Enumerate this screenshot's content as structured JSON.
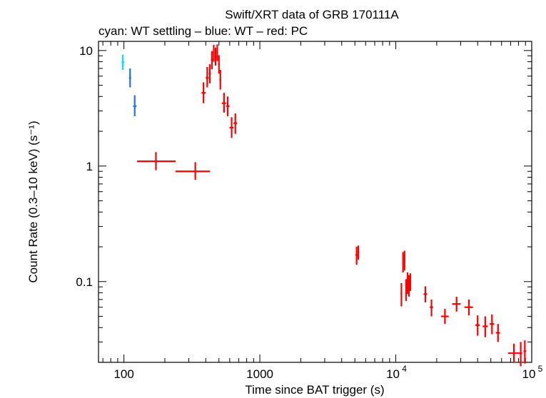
{
  "chart_data": {
    "type": "scatter",
    "title": "Swift/XRT data of GRB 170111A",
    "subtitle": "cyan: WT settling – blue: WT – red: PC",
    "xlabel": "Time since BAT trigger (s)",
    "ylabel": "Count Rate (0.3–10 keV) (s⁻¹)",
    "xscale": "log",
    "yscale": "log",
    "xlim": [
      65,
      100000
    ],
    "ylim": [
      0.02,
      12
    ],
    "x_ticks": [
      {
        "value": 100,
        "label": "100"
      },
      {
        "value": 1000,
        "label": "1000"
      },
      {
        "value": 10000,
        "base": "10",
        "exp": "4"
      },
      {
        "value": 100000,
        "base": "10",
        "exp": "5"
      }
    ],
    "y_ticks": [
      {
        "value": 0.1,
        "label": "0.1"
      },
      {
        "value": 1,
        "label": "1"
      },
      {
        "value": 10,
        "label": "10"
      }
    ],
    "series": [
      {
        "name": "WT settling",
        "color": "#00e5ff",
        "points": [
          {
            "x": 98,
            "y": 7.9,
            "xlo": 96,
            "xhi": 101,
            "ylo": 6.8,
            "yhi": 9.2
          }
        ]
      },
      {
        "name": "WT",
        "color": "#1e74e8",
        "points": [
          {
            "x": 111,
            "y": 5.8,
            "xlo": 109,
            "xhi": 113,
            "ylo": 4.8,
            "yhi": 7.0
          },
          {
            "x": 120,
            "y": 3.3,
            "xlo": 117,
            "xhi": 124,
            "ylo": 2.7,
            "yhi": 4.1
          }
        ]
      },
      {
        "name": "PC",
        "color": "#ff0000",
        "points": [
          {
            "x": 172,
            "y": 1.1,
            "xlo": 125,
            "xhi": 240,
            "ylo": 0.92,
            "yhi": 1.32
          },
          {
            "x": 335,
            "y": 0.9,
            "xlo": 240,
            "xhi": 430,
            "ylo": 0.76,
            "yhi": 1.08
          },
          {
            "x": 385,
            "y": 4.3,
            "xlo": 372,
            "xhi": 400,
            "ylo": 3.5,
            "yhi": 5.3
          },
          {
            "x": 410,
            "y": 5.8,
            "xlo": 400,
            "xhi": 420,
            "ylo": 4.8,
            "yhi": 7.2
          },
          {
            "x": 428,
            "y": 6.3,
            "xlo": 420,
            "xhi": 436,
            "ylo": 5.2,
            "yhi": 7.6
          },
          {
            "x": 444,
            "y": 8.3,
            "xlo": 436,
            "xhi": 452,
            "ylo": 6.9,
            "yhi": 9.9
          },
          {
            "x": 458,
            "y": 9.5,
            "xlo": 452,
            "xhi": 465,
            "ylo": 8.0,
            "yhi": 11.2
          },
          {
            "x": 472,
            "y": 8.9,
            "xlo": 465,
            "xhi": 480,
            "ylo": 7.4,
            "yhi": 10.6
          },
          {
            "x": 486,
            "y": 9.6,
            "xlo": 480,
            "xhi": 493,
            "ylo": 8.1,
            "yhi": 11.3
          },
          {
            "x": 500,
            "y": 7.6,
            "xlo": 493,
            "xhi": 508,
            "ylo": 6.3,
            "yhi": 9.1
          },
          {
            "x": 512,
            "y": 5.6,
            "xlo": 505,
            "xhi": 520,
            "ylo": 4.6,
            "yhi": 6.8
          },
          {
            "x": 545,
            "y": 3.5,
            "xlo": 525,
            "xhi": 565,
            "ylo": 2.9,
            "yhi": 4.3
          },
          {
            "x": 580,
            "y": 3.3,
            "xlo": 565,
            "xhi": 598,
            "ylo": 2.7,
            "yhi": 4.0
          },
          {
            "x": 620,
            "y": 2.15,
            "xlo": 598,
            "xhi": 640,
            "ylo": 1.75,
            "yhi": 2.65
          },
          {
            "x": 660,
            "y": 2.35,
            "xlo": 640,
            "xhi": 680,
            "ylo": 1.9,
            "yhi": 2.85
          },
          {
            "x": 5150,
            "y": 0.17,
            "xlo": 5050,
            "xhi": 5250,
            "ylo": 0.14,
            "yhi": 0.2
          },
          {
            "x": 5300,
            "y": 0.18,
            "xlo": 5220,
            "xhi": 5380,
            "ylo": 0.155,
            "yhi": 0.205
          },
          {
            "x": 11000,
            "y": 0.078,
            "xlo": 10850,
            "xhi": 11150,
            "ylo": 0.061,
            "yhi": 0.097
          },
          {
            "x": 11300,
            "y": 0.15,
            "xlo": 11180,
            "xhi": 11420,
            "ylo": 0.12,
            "yhi": 0.18
          },
          {
            "x": 11600,
            "y": 0.155,
            "xlo": 11480,
            "xhi": 11720,
            "ylo": 0.125,
            "yhi": 0.185
          },
          {
            "x": 11900,
            "y": 0.085,
            "xlo": 11780,
            "xhi": 12020,
            "ylo": 0.068,
            "yhi": 0.105
          },
          {
            "x": 12200,
            "y": 0.098,
            "xlo": 12080,
            "xhi": 12320,
            "ylo": 0.078,
            "yhi": 0.12
          },
          {
            "x": 12500,
            "y": 0.093,
            "xlo": 12380,
            "xhi": 12620,
            "ylo": 0.074,
            "yhi": 0.114
          },
          {
            "x": 12800,
            "y": 0.1,
            "xlo": 12680,
            "xhi": 12920,
            "ylo": 0.083,
            "yhi": 0.118
          },
          {
            "x": 16500,
            "y": 0.078,
            "xlo": 16000,
            "xhi": 17000,
            "ylo": 0.066,
            "yhi": 0.091
          },
          {
            "x": 18300,
            "y": 0.06,
            "xlo": 17800,
            "xhi": 18800,
            "ylo": 0.05,
            "yhi": 0.07
          },
          {
            "x": 23000,
            "y": 0.05,
            "xlo": 21500,
            "xhi": 24500,
            "ylo": 0.043,
            "yhi": 0.058
          },
          {
            "x": 28000,
            "y": 0.064,
            "xlo": 26000,
            "xhi": 30000,
            "ylo": 0.055,
            "yhi": 0.074
          },
          {
            "x": 34500,
            "y": 0.06,
            "xlo": 32000,
            "xhi": 37000,
            "ylo": 0.051,
            "yhi": 0.07
          },
          {
            "x": 40000,
            "y": 0.042,
            "xlo": 38500,
            "xhi": 41500,
            "ylo": 0.034,
            "yhi": 0.051
          },
          {
            "x": 45500,
            "y": 0.041,
            "xlo": 43500,
            "xhi": 47500,
            "ylo": 0.033,
            "yhi": 0.05
          },
          {
            "x": 51000,
            "y": 0.043,
            "xlo": 49000,
            "xhi": 53000,
            "ylo": 0.035,
            "yhi": 0.052
          },
          {
            "x": 56500,
            "y": 0.036,
            "xlo": 54500,
            "xhi": 58500,
            "ylo": 0.03,
            "yhi": 0.043
          },
          {
            "x": 74000,
            "y": 0.024,
            "xlo": 67000,
            "xhi": 81000,
            "ylo": 0.02,
            "yhi": 0.029
          },
          {
            "x": 83000,
            "y": 0.024,
            "xlo": 81000,
            "xhi": 85000,
            "ylo": 0.0185,
            "yhi": 0.03
          },
          {
            "x": 89000,
            "y": 0.025,
            "xlo": 87000,
            "xhi": 91000,
            "ylo": 0.0195,
            "yhi": 0.031
          }
        ]
      }
    ]
  }
}
